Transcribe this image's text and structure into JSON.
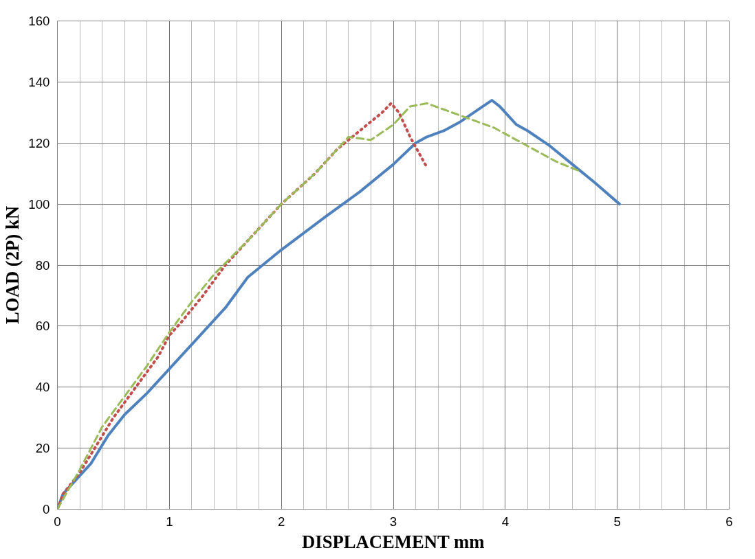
{
  "chart_data": {
    "type": "line",
    "xlabel": "DISPLACEMENT mm",
    "ylabel": "LOAD (2P) kN",
    "xlim": [
      0,
      6
    ],
    "xticks": [
      0,
      1,
      2,
      3,
      4,
      5,
      6
    ],
    "ylim": [
      0,
      160
    ],
    "yticks": [
      0,
      20,
      40,
      60,
      80,
      100,
      120,
      140,
      160
    ],
    "grid": true,
    "series": [
      {
        "color": "#4f81bd",
        "line_style": "solid",
        "x": [
          0,
          0.05,
          0.3,
          0.35,
          0.45,
          0.6,
          0.7,
          0.8,
          1.0,
          1.2,
          1.5,
          1.6,
          1.7,
          2.0,
          2.4,
          2.7,
          3.0,
          3.2,
          3.3,
          3.45,
          3.6,
          3.8,
          3.88,
          3.95,
          4.1,
          4.2,
          4.4,
          4.6,
          4.8,
          5.02
        ],
        "values": [
          0,
          5,
          15,
          18,
          24,
          31,
          34.5,
          38,
          46,
          54,
          66,
          71,
          76,
          85,
          96,
          104,
          113,
          120,
          122,
          124,
          127,
          132,
          134,
          132,
          126,
          124,
          119,
          113,
          107,
          100
        ]
      },
      {
        "color": "#c0504d",
        "line_style": "dotted",
        "x": [
          0,
          0.05,
          0.2,
          0.3,
          0.5,
          0.7,
          0.9,
          1.0,
          1.1,
          1.3,
          1.5,
          1.7,
          2.0,
          2.3,
          2.5,
          2.7,
          2.9,
          2.98,
          3.05,
          3.15,
          3.3
        ],
        "values": [
          0,
          5,
          12,
          18,
          30,
          40,
          50,
          57,
          61,
          70,
          80,
          88,
          100,
          110,
          118,
          124,
          130,
          133,
          130,
          122,
          112
        ]
      },
      {
        "color": "#9bbb59",
        "line_style": "dashed",
        "x": [
          0,
          0.2,
          0.4,
          0.6,
          0.8,
          1.0,
          1.2,
          1.4,
          1.7,
          2.0,
          2.3,
          2.5,
          2.6,
          2.8,
          3.0,
          3.15,
          3.3,
          3.6,
          3.9,
          4.2,
          4.45,
          4.65
        ],
        "values": [
          0,
          13,
          27,
          37,
          47,
          58,
          68,
          77,
          88,
          100,
          110,
          118,
          122,
          121,
          126,
          132,
          133,
          129,
          125,
          119,
          114,
          111
        ]
      }
    ]
  }
}
